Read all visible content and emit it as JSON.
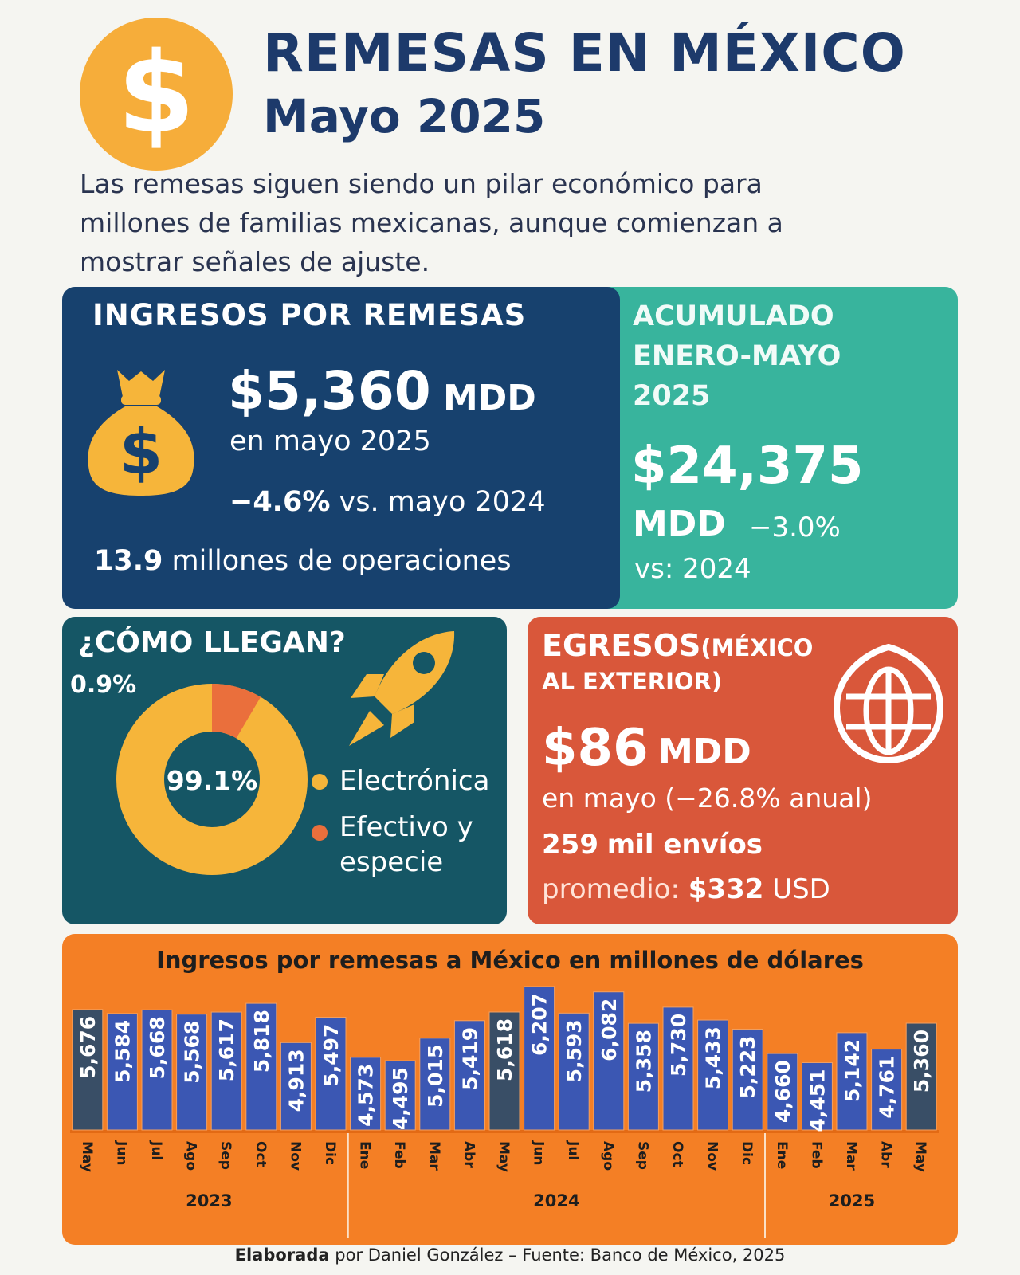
{
  "header": {
    "title": "REMESAS EN MÉXICO",
    "subtitle": "Mayo 2025",
    "coin_symbol": "$",
    "intro_lines": [
      "Las remesas siguen siendo un pilar económico para",
      "millones de familias mexicanas, aunque comienzan a",
      "mostrar señales de ajuste."
    ]
  },
  "ingresos": {
    "heading": "INGRESOS POR REMESAS",
    "amount": "$5,360",
    "unit": "MDD",
    "period": "en mayo 2025",
    "change": "−4.6%",
    "change_text": "vs. mayo 2024",
    "operations_value": "13.9",
    "operations_text": "millones de operaciones",
    "icon": "money-bag-icon"
  },
  "acumulado": {
    "heading_lines": [
      "ACUMULADO",
      "ENERO-MAYO",
      "2025"
    ],
    "amount": "$24,375",
    "unit": "MDD",
    "change": "−3.0%",
    "change_text": "vs: 2024"
  },
  "como_llegan": {
    "heading": "¿CÓMO LLEGAN?",
    "small_label": "0.9%",
    "center_label": "99.1%",
    "icon": "rocket-icon",
    "slices": [
      {
        "label": "Electrónica",
        "value": 99.1,
        "color": "#f6b53a"
      },
      {
        "label_lines": [
          "Efectivo y",
          "especie"
        ],
        "value": 0.9,
        "color": "#ea6f3c"
      }
    ]
  },
  "egresos": {
    "heading": "EGRESOS",
    "heading_suffix_1": "(MÉXICO",
    "heading_suffix_2": "AL EXTERIOR)",
    "amount": "$86",
    "unit": "MDD",
    "period": "en mayo (−26.8% anual)",
    "sends_value": "259",
    "sends_text": "mil envíos",
    "avg_label": "promedio:",
    "avg_value": "$332",
    "avg_unit": "USD",
    "icon": "globe-icon"
  },
  "chart_data": {
    "type": "bar",
    "title": "Ingresos por remesas a México en millones de dólares",
    "categories": [
      "May",
      "Jun",
      "Jul",
      "Ago",
      "Sep",
      "Oct",
      "Nov",
      "Dic",
      "Ene",
      "Feb",
      "Mar",
      "Abr",
      "May",
      "Jun",
      "Jul",
      "Ago",
      "Sep",
      "Oct",
      "Nov",
      "Dic",
      "Ene",
      "Feb",
      "Mar",
      "Abr",
      "May"
    ],
    "values": [
      5676,
      5584,
      5668,
      5568,
      5617,
      5818,
      4913,
      5497,
      4573,
      4495,
      5015,
      5419,
      5618,
      6207,
      5593,
      6082,
      5358,
      5730,
      5433,
      5223,
      4660,
      4451,
      5142,
      4761,
      5360
    ],
    "value_labels": [
      "5,676",
      "5,584",
      "5,668",
      "5,568",
      "5,617",
      "5,818",
      "4,913",
      "5,497",
      "4,573",
      "4,495",
      "5,015",
      "5,419",
      "5,618",
      "6,207",
      "5,593",
      "6,082",
      "5,358",
      "5,730",
      "5,433",
      "5,223",
      "4,660",
      "4,451",
      "5,142",
      "4,761",
      "5,360"
    ],
    "highlight_months": "May",
    "colors": {
      "bar": "#3b57b3",
      "highlight": "#394e66",
      "background": "#f47f25"
    },
    "year_groups": [
      {
        "year": "2023",
        "count": 8
      },
      {
        "year": "2024",
        "count": 12
      },
      {
        "year": "2025",
        "count": 5
      }
    ],
    "ylim": [
      4000,
      6500
    ]
  },
  "footer": {
    "bold": "Elaborada",
    "text": "por Daniel González – Fuente: Banco de México, 2025"
  }
}
